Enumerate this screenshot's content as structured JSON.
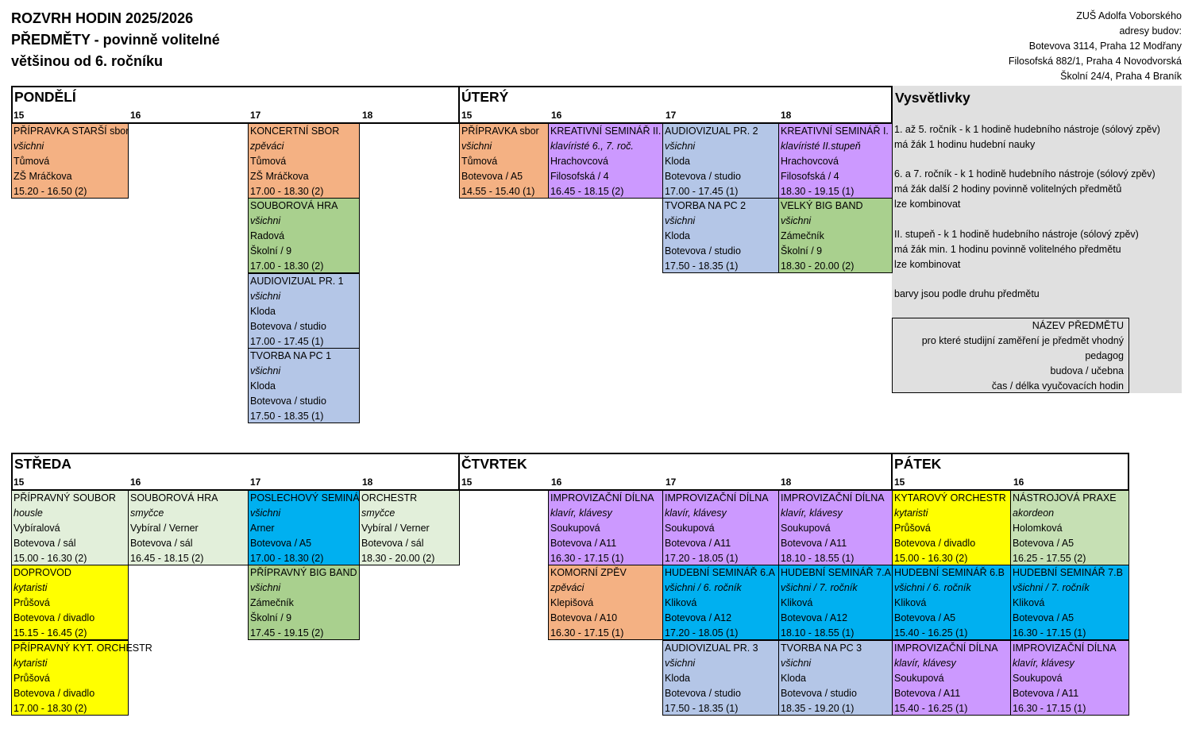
{
  "header": {
    "line1": "ROZVRH HODIN 2025/2026",
    "line2": "PŘEDMĚTY - povinně volitelné",
    "line3": "většinou od 6. ročníku"
  },
  "school": {
    "name": "ZUŠ Adolfa Voborského",
    "addresses_label": "adresy budov:",
    "addr1": "Botevova 3114, Praha 12 Modřany",
    "addr2": "Filosofská 882/1, Praha 4 Novodvorská",
    "addr3": "Školní 24/4, Praha 4 Braník"
  },
  "colors": {
    "orange": "#f4b183",
    "purple": "#cc99ff",
    "blue_grey": "#b4c6e7",
    "green": "#a9d08e",
    "light_green": "#e2efda",
    "cyan": "#00b0f0",
    "yellow": "#ffff00",
    "mid_green": "#c6e0b4",
    "legend_grey": "#e0e0e0"
  },
  "days": {
    "mon": "PONDĚLÍ",
    "tue": "ÚTERÝ",
    "wed": "STŘEDA",
    "thu": "ČTVRTEK",
    "fri": "PÁTEK"
  },
  "hours": {
    "h15": "15",
    "h16": "16",
    "h17": "17",
    "h18": "18"
  },
  "cells": {
    "mon1": {
      "name": "PŘÍPRAVKA STARŠÍ sbor",
      "who": "všichni",
      "teacher": "Tůmová",
      "place": "ZŠ Mráčkova",
      "time": "15.20 - 16.50 (2)"
    },
    "mon2": {
      "name": "KONCERTNÍ SBOR",
      "who": "zpěváci",
      "teacher": "Tůmová",
      "place": "ZŠ Mráčkova",
      "time": "17.00 - 18.30 (2)"
    },
    "mon3": {
      "name": "SOUBOROVÁ HRA",
      "who": "všichni",
      "teacher": "Radová",
      "place": "Školní / 9",
      "time": "17.00 - 18.30 (2)"
    },
    "mon4": {
      "name": "AUDIOVIZUAL PR. 1",
      "who": "všichni",
      "teacher": "Kloda",
      "place": "Botevova / studio",
      "time": "17.00 - 17.45 (1)"
    },
    "mon5": {
      "name": "TVORBA NA PC 1",
      "who": "všichni",
      "teacher": "Kloda",
      "place": "Botevova / studio",
      "time": "17.50 - 18.35 (1)"
    },
    "tue1": {
      "name": "PŘÍPRAVKA sbor",
      "who": "všichni",
      "teacher": "Tůmová",
      "place": "Botevova / A5",
      "time": "14.55 - 15.40 (1)"
    },
    "tue2": {
      "name": "KREATIVNÍ SEMINÁŘ II.",
      "who": "klavíristé 6., 7. roč.",
      "teacher": "Hrachovcová",
      "place": "Filosofská / 4",
      "time": "16.45 - 18.15 (2)"
    },
    "tue3": {
      "name": "AUDIOVIZUAL PR. 2",
      "who": "všichni",
      "teacher": "Kloda",
      "place": "Botevova / studio",
      "time": "17.00 - 17.45 (1)"
    },
    "tue4": {
      "name": "KREATIVNÍ SEMINÁŘ I.",
      "who": "klavíristé II.stupeň",
      "teacher": "Hrachovcová",
      "place": "Filosofská / 4",
      "time": "18.30 - 19.15 (1)"
    },
    "tue5": {
      "name": "TVORBA NA PC 2",
      "who": "všichni",
      "teacher": "Kloda",
      "place": "Botevova / studio",
      "time": "17.50 - 18.35 (1)"
    },
    "tue6": {
      "name": "VELKÝ BIG BAND",
      "who": "všichni",
      "teacher": "Zámečník",
      "place": "Školní / 9",
      "time": "18.30 - 20.00 (2)"
    },
    "wed1": {
      "name": "PŘÍPRAVNÝ SOUBOR",
      "who": "housle",
      "teacher": "Vybíralová",
      "place": "Botevova / sál",
      "time": "15.00 - 16.30 (2)"
    },
    "wed2": {
      "name": "SOUBOROVÁ HRA",
      "who": "smyčce",
      "teacher": "Vybíral / Verner",
      "place": "Botevova / sál",
      "time": "16.45 - 18.15 (2)"
    },
    "wed3": {
      "name": "POSLECHOVÝ SEMINÁŘ",
      "who": "všichni",
      "teacher": "Arner",
      "place": "Botevova / A5",
      "time": "17.00 - 18.30 (2)"
    },
    "wed4": {
      "name": "ORCHESTR",
      "who": "smyčce",
      "teacher": "Vybíral / Verner",
      "place": "Botevova / sál",
      "time": "18.30 - 20.00 (2)"
    },
    "wed5": {
      "name": "DOPROVOD",
      "who": "kytaristi",
      "teacher": "Průšová",
      "place": "Botevova / divadlo",
      "time": "15.15 - 16.45 (2)"
    },
    "wed6": {
      "name": "PŘÍPRAVNÝ BIG BAND",
      "who": "všichni",
      "teacher": "Zámečník",
      "place": "Školní / 9",
      "time": "17.45 - 19.15 (2)"
    },
    "wed7": {
      "name": "PŘÍPRAVNÝ KYT. ORCHESTR",
      "who": "kytaristi",
      "teacher": "Průšová",
      "place": "Botevova / divadlo",
      "time": "17.00 - 18.30 (2)"
    },
    "thu1": {
      "name": "IMPROVIZAČNÍ DÍLNA",
      "who": "klavír, klávesy",
      "teacher": "Soukupová",
      "place": "Botevova / A11",
      "time": "16.30 - 17.15 (1)"
    },
    "thu2": {
      "name": "IMPROVIZAČNÍ DÍLNA",
      "who": "klavír, klávesy",
      "teacher": "Soukupová",
      "place": "Botevova / A11",
      "time": "17.20 - 18.05 (1)"
    },
    "thu3": {
      "name": "IMPROVIZAČNÍ DÍLNA",
      "who": "klavír, klávesy",
      "teacher": "Soukupová",
      "place": "Botevova / A11",
      "time": "18.10 - 18.55 (1)"
    },
    "thu4": {
      "name": "KOMORNÍ ZPĚV",
      "who": "zpěváci",
      "teacher": "Klepišová",
      "place": "Botevova / A10",
      "time": "16.30 - 17.15 (1)"
    },
    "thu5": {
      "name": "HUDEBNÍ SEMINÁŘ 6.A",
      "who": "všichni / 6. ročník",
      "teacher": "Kliková",
      "place": "Botevova / A12",
      "time": "17.20 - 18.05 (1)"
    },
    "thu6": {
      "name": "HUDEBNÍ SEMINÁŘ 7.A",
      "who": "všichni / 7. ročník",
      "teacher": "Kliková",
      "place": "Botevova / A12",
      "time": "18.10 - 18.55 (1)"
    },
    "thu7": {
      "name": "AUDIOVIZUAL PR. 3",
      "who": "všichni",
      "teacher": "Kloda",
      "place": "Botevova / studio",
      "time": "17.50 - 18.35 (1)"
    },
    "thu8": {
      "name": "TVORBA NA PC 3",
      "who": "všichni",
      "teacher": "Kloda",
      "place": "Botevova / studio",
      "time": "18.35 - 19.20 (1)"
    },
    "fri1": {
      "name": "KYTAROVÝ ORCHESTR",
      "who": "kytaristi",
      "teacher": "Průšová",
      "place": "Botevova / divadlo",
      "time": "15.00 - 16.30 (2)"
    },
    "fri2": {
      "name": "NÁSTROJOVÁ PRAXE",
      "who": "akordeon",
      "teacher": "Holomková",
      "place": "Botevova / A5",
      "time": "16.25 - 17.55 (2)"
    },
    "fri3": {
      "name": "HUDEBNÍ SEMINÁŘ 6.B",
      "who": "všichni / 6. ročník",
      "teacher": "Kliková",
      "place": "Botevova / A5",
      "time": "15.40 - 16.25 (1)"
    },
    "fri4": {
      "name": "HUDEBNÍ SEMINÁŘ 7.B",
      "who": "všichni / 7. ročník",
      "teacher": "Kliková",
      "place": "Botevova / A5",
      "time": "16.30 - 17.15 (1)"
    },
    "fri5": {
      "name": "IMPROVIZAČNÍ DÍLNA",
      "who": "klavír, klávesy",
      "teacher": "Soukupová",
      "place": "Botevova / A11",
      "time": "15.40 - 16.25 (1)"
    },
    "fri6": {
      "name": "IMPROVIZAČNÍ DÍLNA",
      "who": "klavír, klávesy",
      "teacher": "Soukupová",
      "place": "Botevova / A11",
      "time": "16.30 - 17.15 (1)"
    }
  },
  "legend": {
    "title": "Vysvětlivky",
    "l1": "1. až 5. ročník - k 1 hodině hudebního nástroje (sólový zpěv)",
    "l2": "má žák 1 hodinu hudební nauky",
    "l3": "6. a 7. ročník - k 1 hodině hudebního nástroje (sólový zpěv)",
    "l4": "má žák další 2 hodiny povinně volitelných předmětů",
    "l5": "lze kombinovat",
    "l6": "II. stupeň - k 1 hodině hudebního nástroje (sólový zpěv)",
    "l7": "má žák min. 1 hodinu povinně volitelného předmětu",
    "l8": "lze kombinovat",
    "l9": "barvy jsou podle druhu předmětu",
    "key": {
      "name": "NÁZEV PŘEDMĚTU",
      "for1": "pro které studijní zaměření je předmět vhodný",
      "teacher": "pedagog",
      "place": "budova / učebna",
      "time": "čas / délka vyučovacích hodin"
    }
  }
}
